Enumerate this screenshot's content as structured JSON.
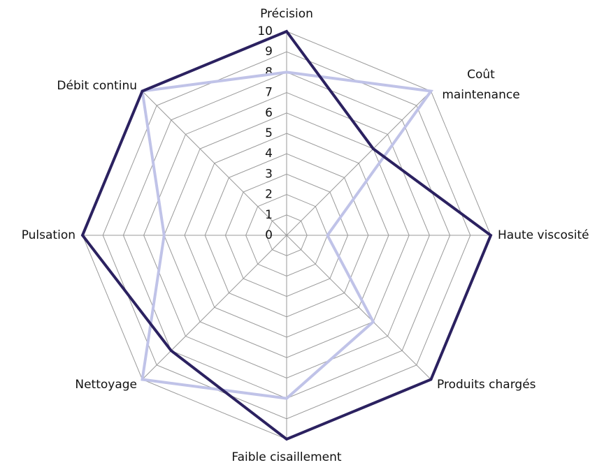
{
  "chart_data": {
    "type": "radar",
    "categories": [
      "Précision",
      "Coût maintenance",
      "Haute viscosité",
      "Produits chargés",
      "Faible cisaillement",
      "Nettoyage",
      "Pulsation",
      "Débit continu"
    ],
    "series": [
      {
        "color": "#2b2160",
        "values": [
          10,
          6,
          10,
          10,
          10,
          8,
          10,
          10
        ]
      },
      {
        "color": "#c0c3e8",
        "values": [
          8,
          10,
          2,
          6,
          8,
          10,
          6,
          10
        ]
      }
    ],
    "rlim": [
      0,
      10
    ],
    "rticks": [
      0,
      1,
      2,
      3,
      4,
      5,
      6,
      7,
      8,
      9,
      10
    ],
    "grid": true
  }
}
